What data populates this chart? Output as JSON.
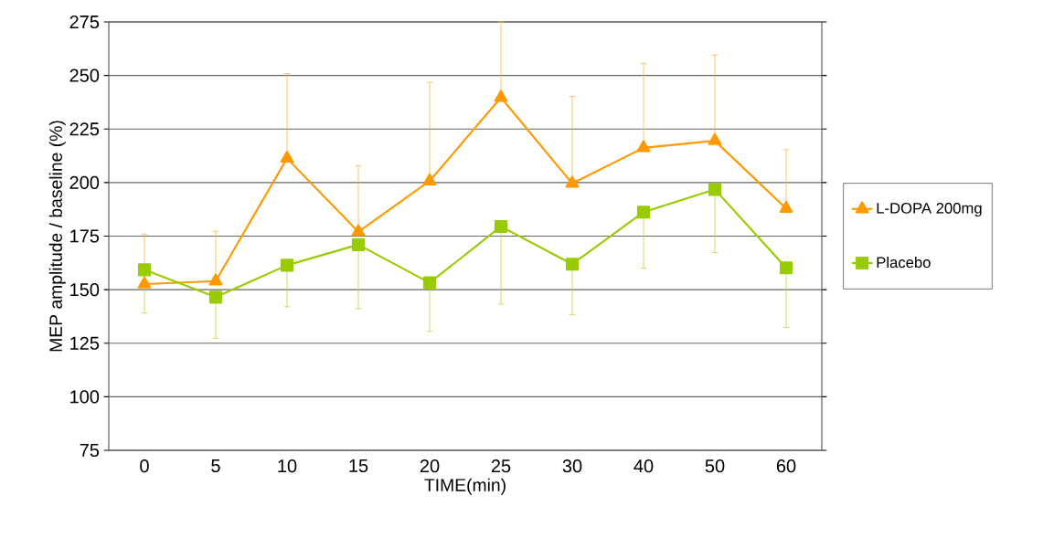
{
  "chart_data": {
    "type": "line",
    "xlabel": "TIME(min)",
    "ylabel": "MEP amplitude / baseline (%)",
    "categories": [
      "0",
      "5",
      "10",
      "15",
      "20",
      "25",
      "30",
      "40",
      "50",
      "60"
    ],
    "series": [
      {
        "name": "L-DOPA 200mg",
        "color": "#ff9900",
        "marker": "triangle",
        "values": [
          152.6,
          154,
          211.3,
          177,
          200.7,
          239.7,
          199.6,
          216.2,
          219.5,
          187.9
        ],
        "errors": [
          [
            152.6,
            176
          ],
          [
            154,
            177.3
          ],
          [
            211.3,
            250.9
          ],
          [
            177,
            207.9
          ],
          [
            200.7,
            246.8
          ],
          [
            239.7,
            275
          ],
          [
            199.6,
            240.2
          ],
          [
            216.2,
            255.7
          ],
          [
            219.5,
            259.5
          ],
          [
            187.9,
            215.3
          ]
        ]
      },
      {
        "name": "Placebo",
        "color": "#99cc00",
        "marker": "square",
        "values": [
          159.3,
          146.5,
          161.4,
          171,
          153.2,
          179.5,
          161.9,
          186.2,
          196.8,
          160.2
        ],
        "errors": [
          [
            139.1,
            159.3
          ],
          [
            127.3,
            146.5
          ],
          [
            142,
            161.4
          ],
          [
            141.1,
            171
          ],
          [
            130.5,
            153.2
          ],
          [
            143.2,
            179.5
          ],
          [
            138.3,
            161.9
          ],
          [
            160.1,
            186.2
          ],
          [
            167.3,
            196.8
          ],
          [
            132.3,
            160.2
          ]
        ]
      }
    ],
    "ylim": [
      75,
      275
    ],
    "yticks": [
      75,
      100,
      125,
      150,
      175,
      200,
      225,
      250,
      275
    ],
    "grid": "y",
    "legend": "right"
  }
}
